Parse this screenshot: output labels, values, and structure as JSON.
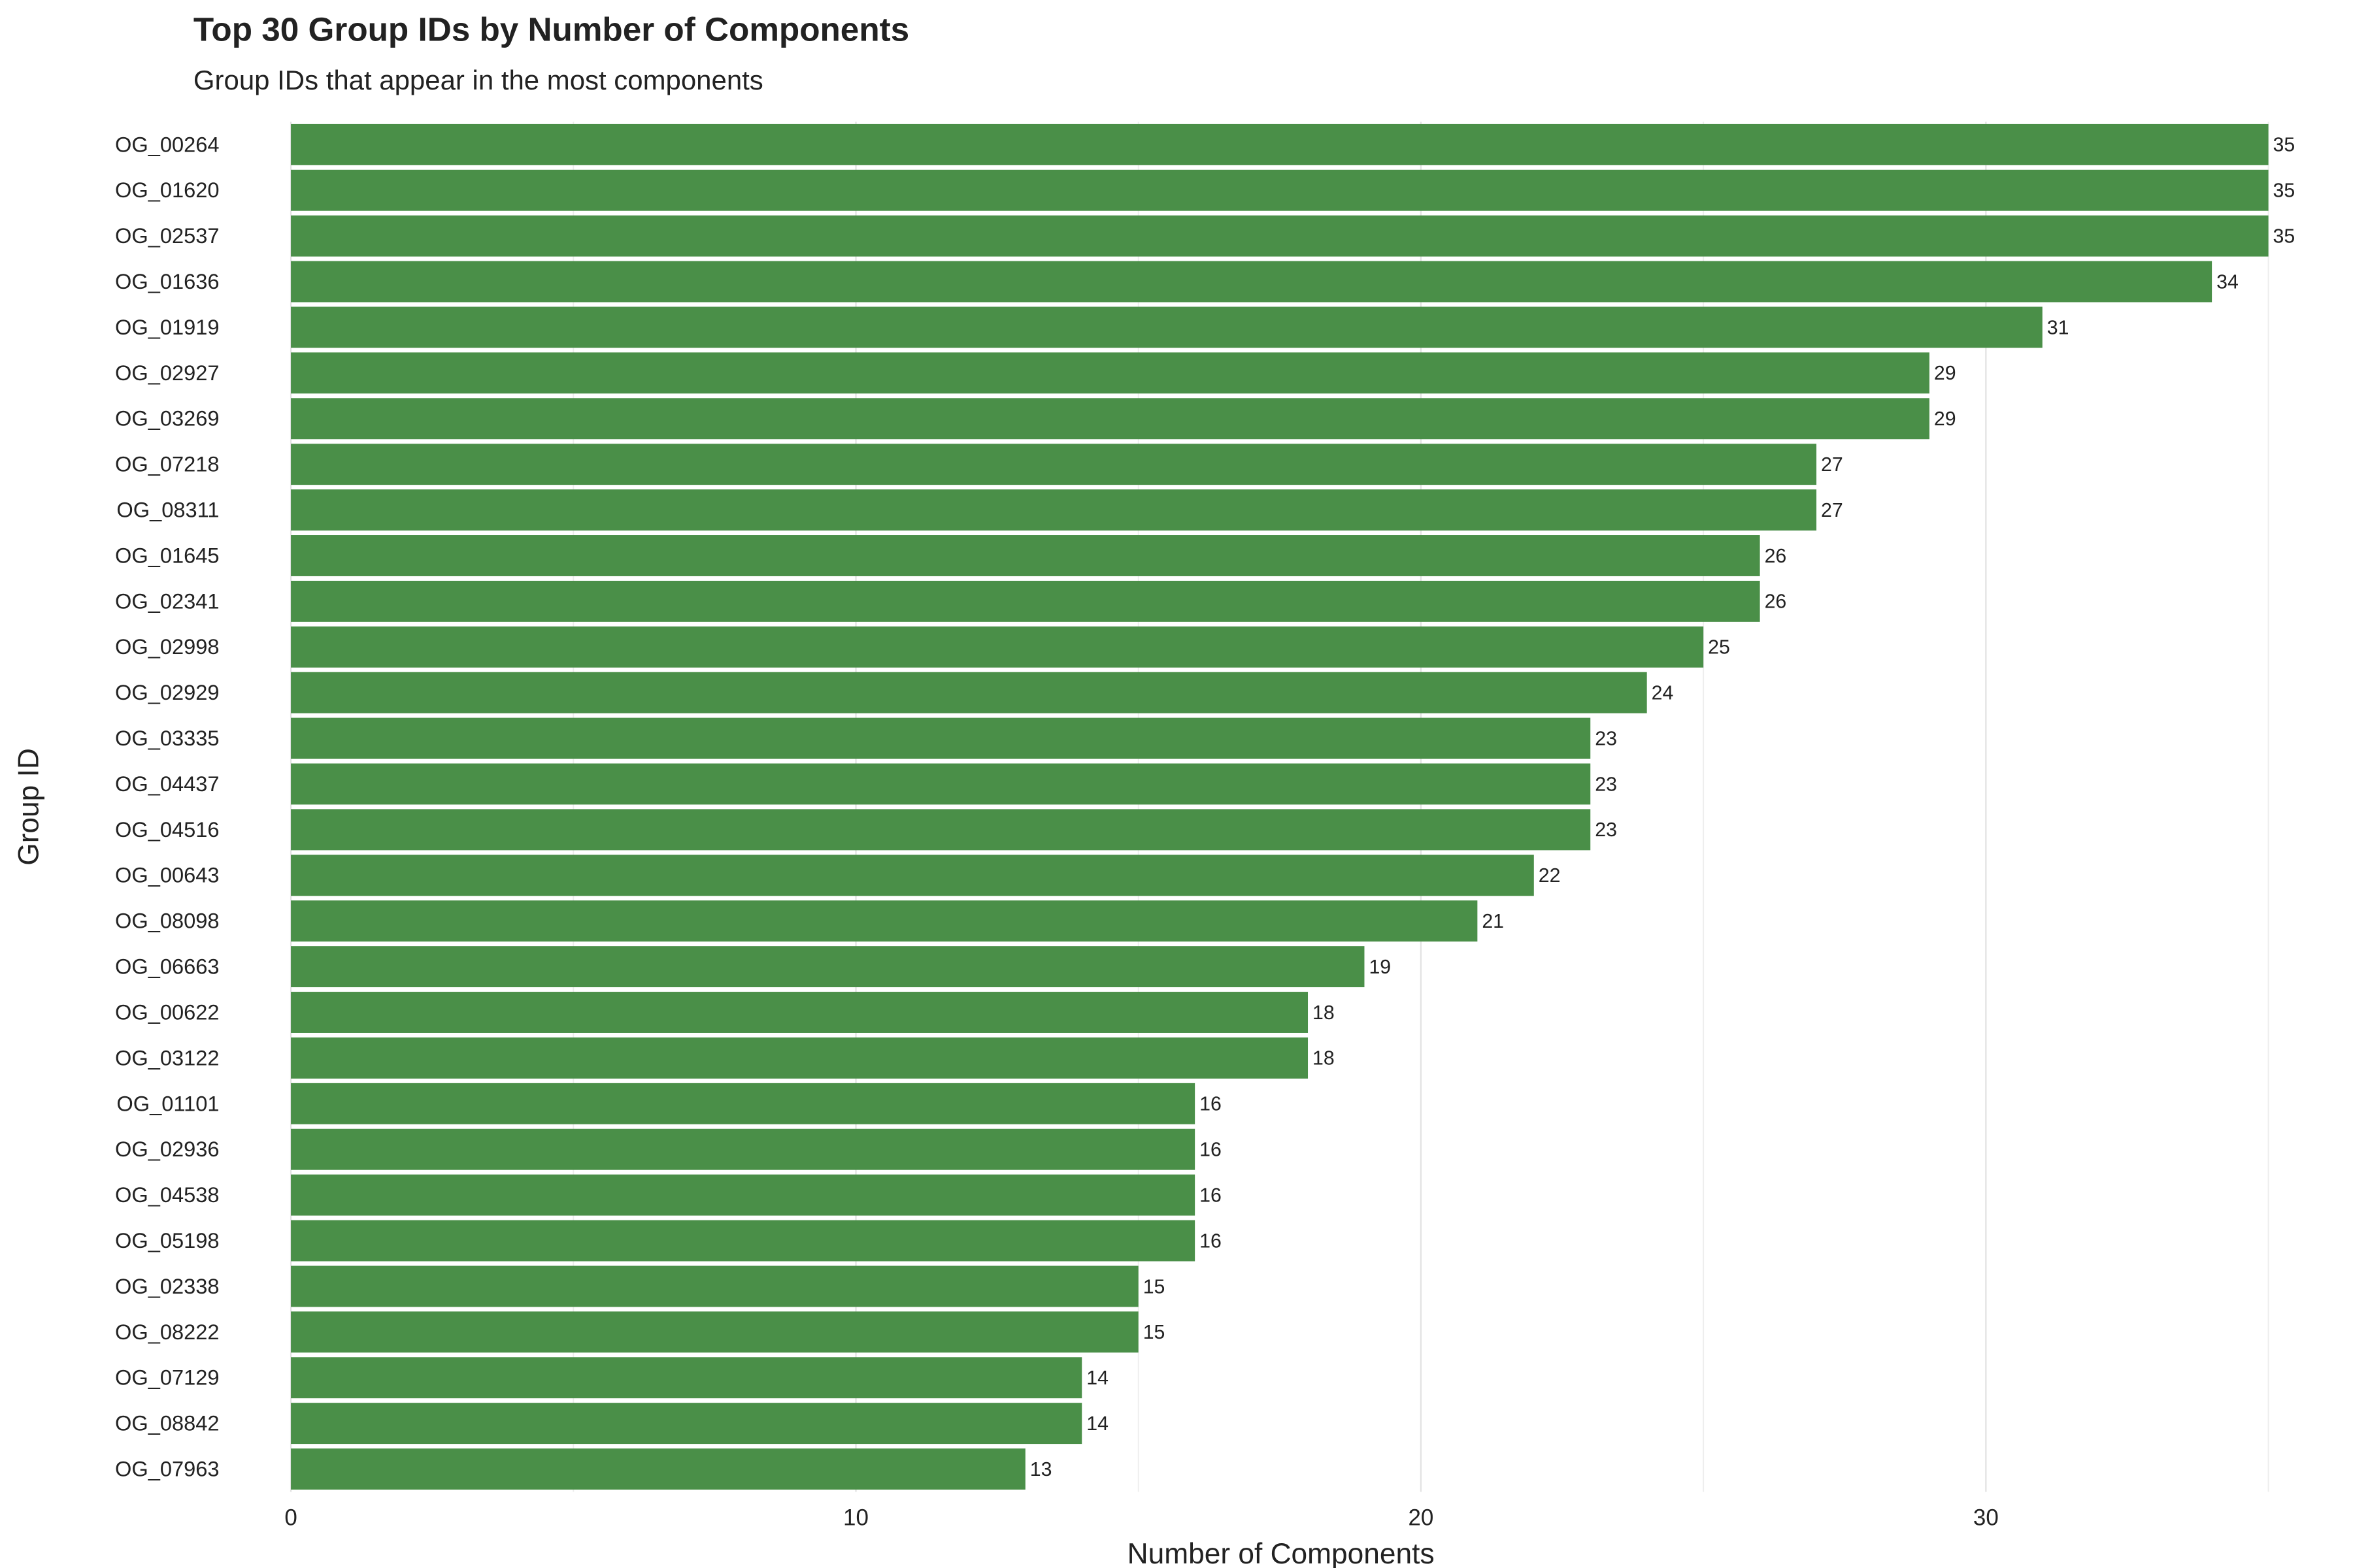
{
  "chart_data": {
    "type": "hbar",
    "title": "Top 30 Group IDs by Number of Components",
    "subtitle": "Group IDs that appear in the most components",
    "x_label": "Number of Components",
    "y_label": "Group ID",
    "categories": [
      "OG_00264",
      "OG_01620",
      "OG_02537",
      "OG_01636",
      "OG_01919",
      "OG_02927",
      "OG_03269",
      "OG_07218",
      "OG_08311",
      "OG_01645",
      "OG_02341",
      "OG_02998",
      "OG_02929",
      "OG_03335",
      "OG_04437",
      "OG_04516",
      "OG_00643",
      "OG_08098",
      "OG_06663",
      "OG_00622",
      "OG_03122",
      "OG_01101",
      "OG_02936",
      "OG_04538",
      "OG_05198",
      "OG_02338",
      "OG_08222",
      "OG_07129",
      "OG_08842",
      "OG_07963"
    ],
    "values": [
      35,
      35,
      35,
      34,
      31,
      29,
      29,
      27,
      27,
      26,
      26,
      25,
      24,
      23,
      23,
      23,
      22,
      21,
      19,
      18,
      18,
      16,
      16,
      16,
      16,
      15,
      15,
      14,
      14,
      13
    ],
    "color": "#4a8f48",
    "xlim": [
      0,
      35.5
    ],
    "xticks": [
      0,
      10,
      20,
      30
    ],
    "minor_grid": [
      5,
      15,
      25,
      35
    ],
    "grid": true
  }
}
